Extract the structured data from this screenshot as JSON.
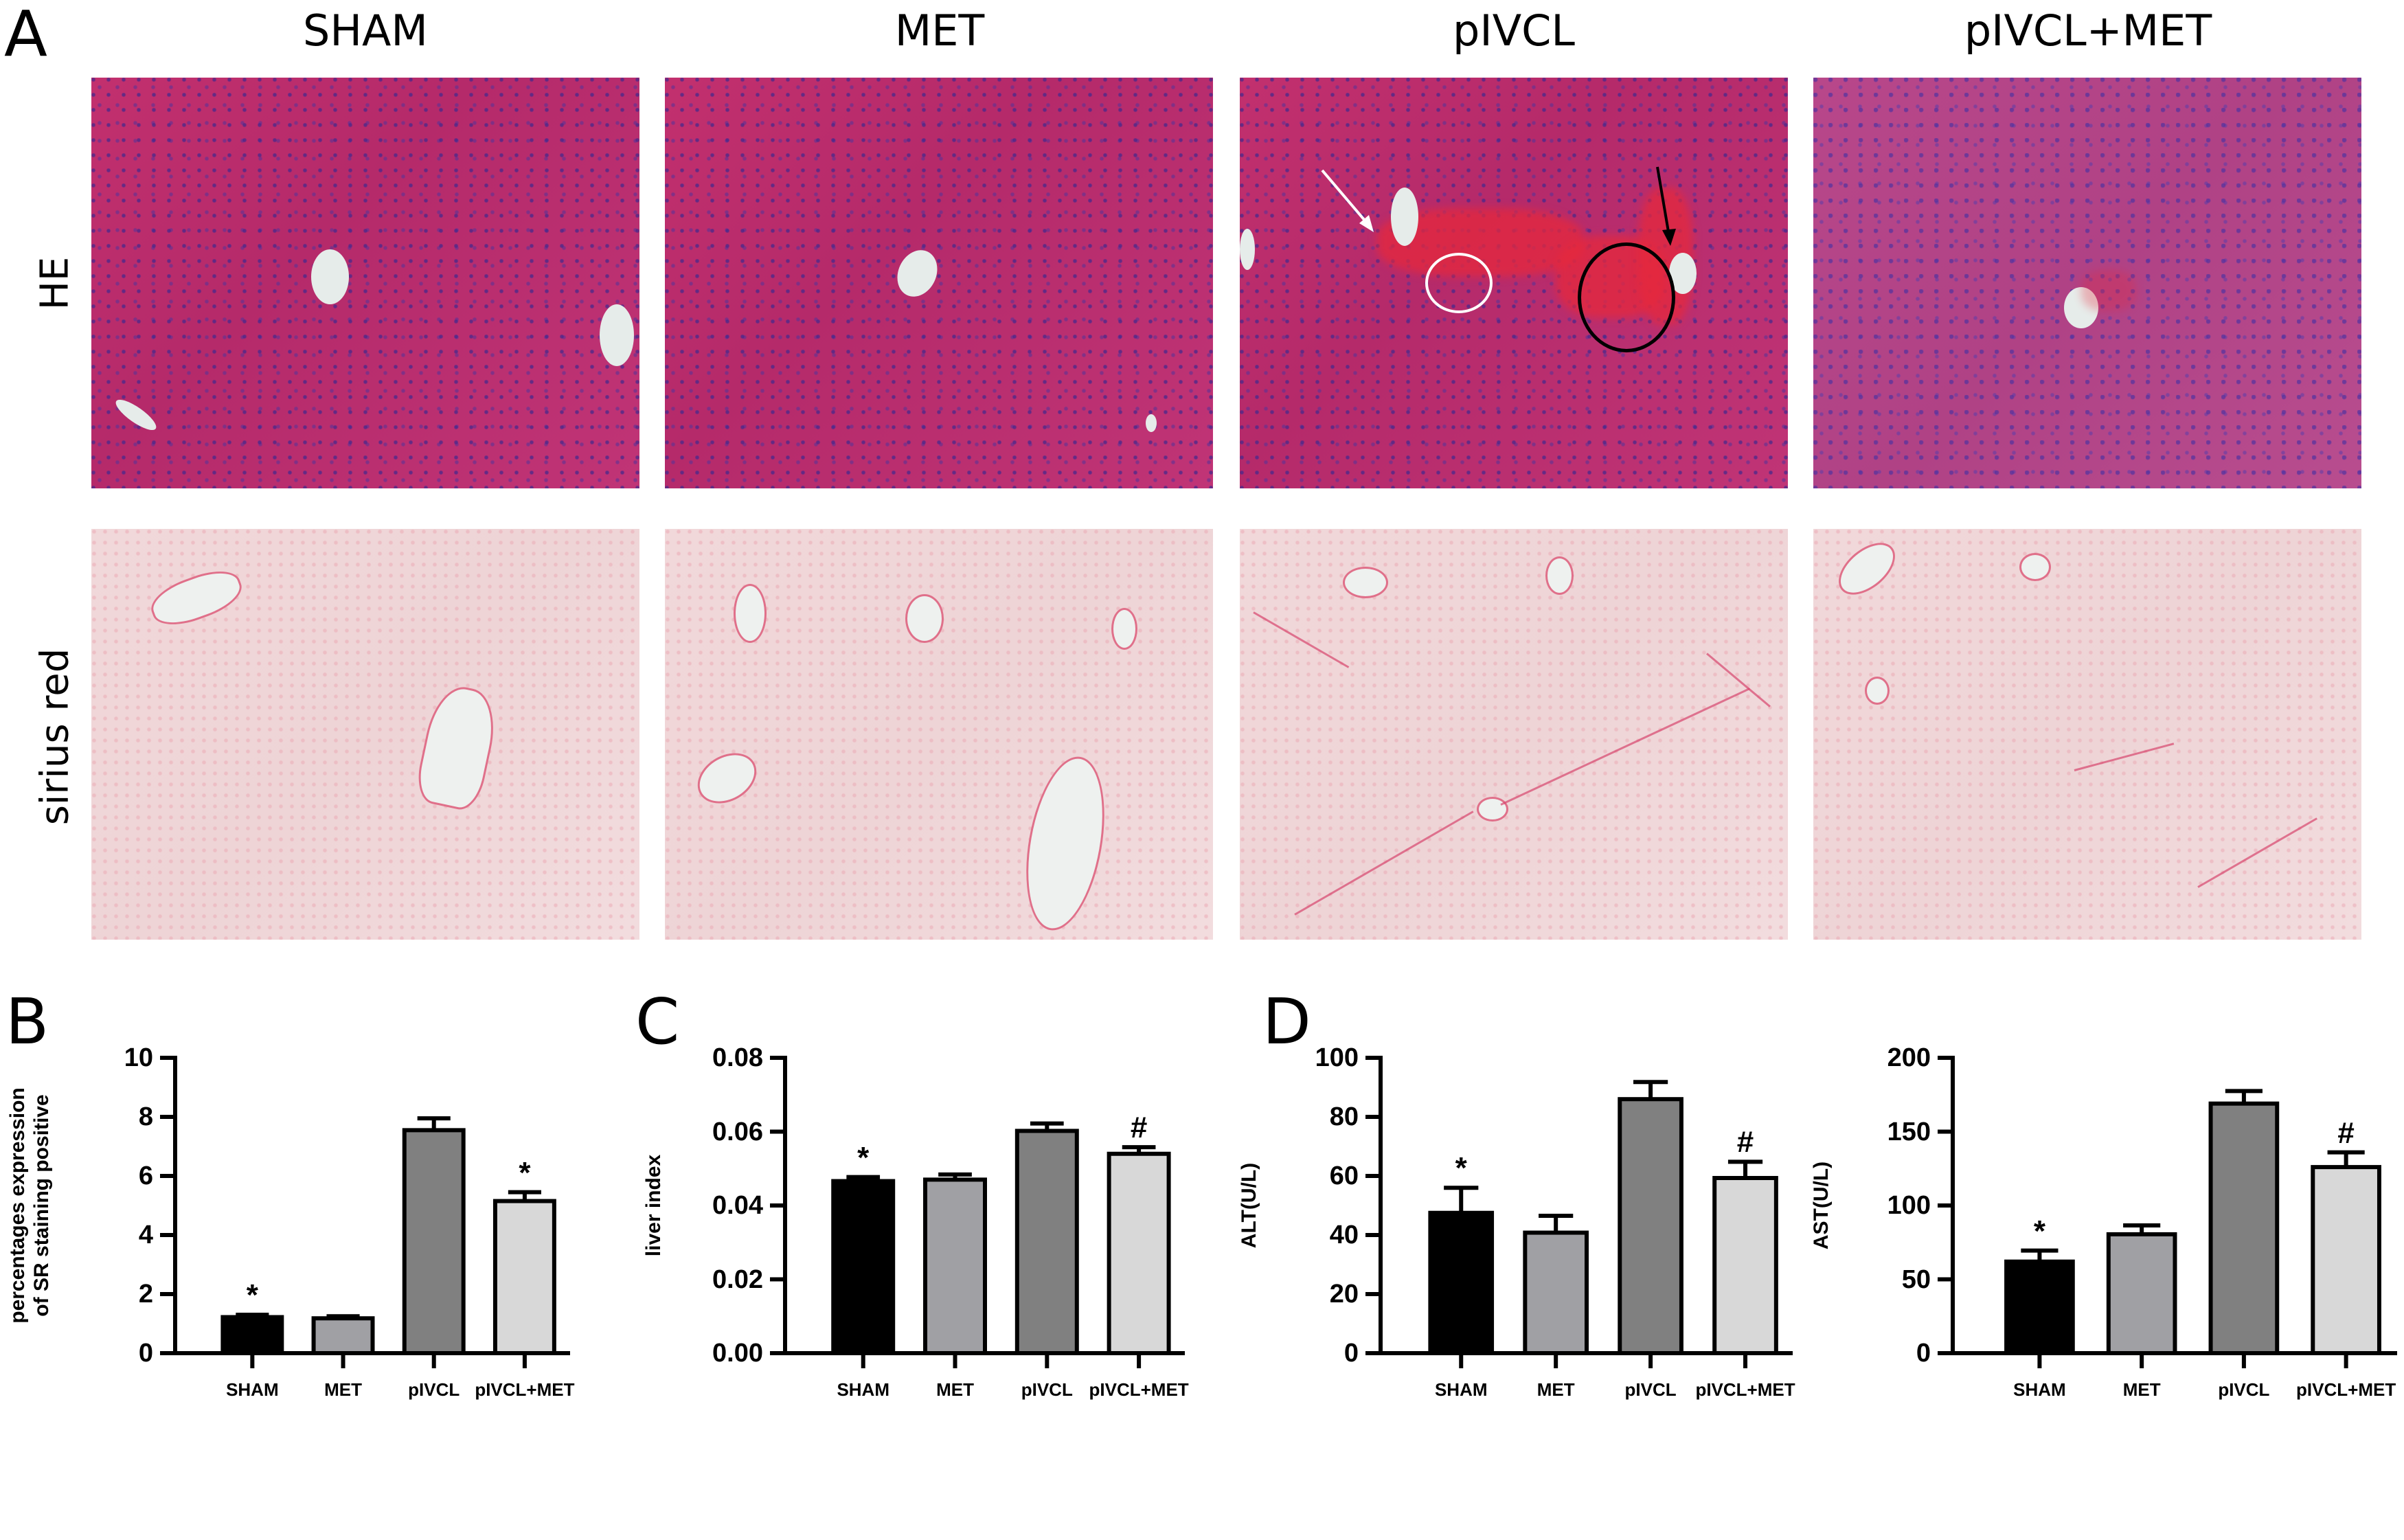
{
  "figure": {
    "panel_letters": {
      "A": "A",
      "B": "B",
      "C": "C",
      "D": "D"
    },
    "columns": [
      "SHAM",
      "MET",
      "pIVCL",
      "pIVCL+MET"
    ],
    "rows": [
      "HE",
      "sirius red"
    ],
    "annotations": {
      "pIVCL_HE": [
        "white arrow",
        "black arrow",
        "white circle",
        "black circle"
      ]
    }
  },
  "chart_data": [
    {
      "panel": "B",
      "type": "bar",
      "categories": [
        "SHAM",
        "MET",
        "pIVCL",
        "pIVCL+MET"
      ],
      "values": [
        1.22,
        1.18,
        7.55,
        5.15
      ],
      "error_upper": [
        1.3,
        1.25,
        7.95,
        5.45
      ],
      "significance": [
        "*",
        "",
        "",
        "*"
      ],
      "colors": [
        "#000000",
        "#a0a0a4",
        "#808080",
        "#d8d8d8"
      ],
      "title": "",
      "xlabel": "",
      "ylabel": "percentages expression of SR staining positive",
      "ylabel_lines": [
        "percentages expression",
        "of SR staining positive"
      ],
      "ylim": [
        0,
        10
      ],
      "yticks": [
        "0",
        "2",
        "4",
        "6",
        "8",
        "10"
      ],
      "grid": false,
      "legend": "none"
    },
    {
      "panel": "C",
      "type": "bar",
      "categories": [
        "SHAM",
        "MET",
        "pIVCL",
        "pIVCL+MET"
      ],
      "values": [
        0.0466,
        0.047,
        0.0602,
        0.054
      ],
      "error_upper": [
        0.0477,
        0.0484,
        0.0622,
        0.0558
      ],
      "significance": [
        "*",
        "",
        "",
        "#"
      ],
      "colors": [
        "#000000",
        "#a0a0a4",
        "#808080",
        "#d8d8d8"
      ],
      "title": "",
      "xlabel": "",
      "ylabel": "liver index",
      "ylabel_lines": [
        "liver index"
      ],
      "ylim": [
        0,
        0.08
      ],
      "yticks": [
        "0.00",
        "0.02",
        "0.04",
        "0.06",
        "0.08"
      ],
      "grid": false,
      "legend": "none"
    },
    {
      "panel": "D",
      "type": "bar",
      "categories": [
        "SHAM",
        "MET",
        "pIVCL",
        "pIVCL+MET"
      ],
      "values": [
        47.5,
        40.8,
        86.0,
        59.3
      ],
      "error_upper": [
        56.0,
        46.5,
        91.8,
        64.8
      ],
      "significance": [
        "*",
        "",
        "",
        "#"
      ],
      "colors": [
        "#000000",
        "#a0a0a4",
        "#808080",
        "#d8d8d8"
      ],
      "title": "",
      "xlabel": "",
      "ylabel": "ALT(U/L)",
      "ylabel_lines": [
        "ALT(U/L)"
      ],
      "ylim": [
        0,
        100
      ],
      "yticks": [
        "0",
        "20",
        "40",
        "60",
        "80",
        "100"
      ],
      "grid": false,
      "legend": "none"
    },
    {
      "panel": "D",
      "type": "bar",
      "categories": [
        "SHAM",
        "MET",
        "pIVCL",
        "pIVCL+MET"
      ],
      "values": [
        62.0,
        80.5,
        169.0,
        126.0
      ],
      "error_upper": [
        69.5,
        86.5,
        177.5,
        136.0
      ],
      "significance": [
        "*",
        "",
        "",
        "#"
      ],
      "colors": [
        "#000000",
        "#a0a0a4",
        "#808080",
        "#d8d8d8"
      ],
      "title": "",
      "xlabel": "",
      "ylabel": "AST(U/L)",
      "ylabel_lines": [
        "AST(U/L)"
      ],
      "ylim": [
        0,
        200
      ],
      "yticks": [
        "0",
        "50",
        "100",
        "150",
        "200"
      ],
      "grid": false,
      "legend": "none"
    }
  ]
}
